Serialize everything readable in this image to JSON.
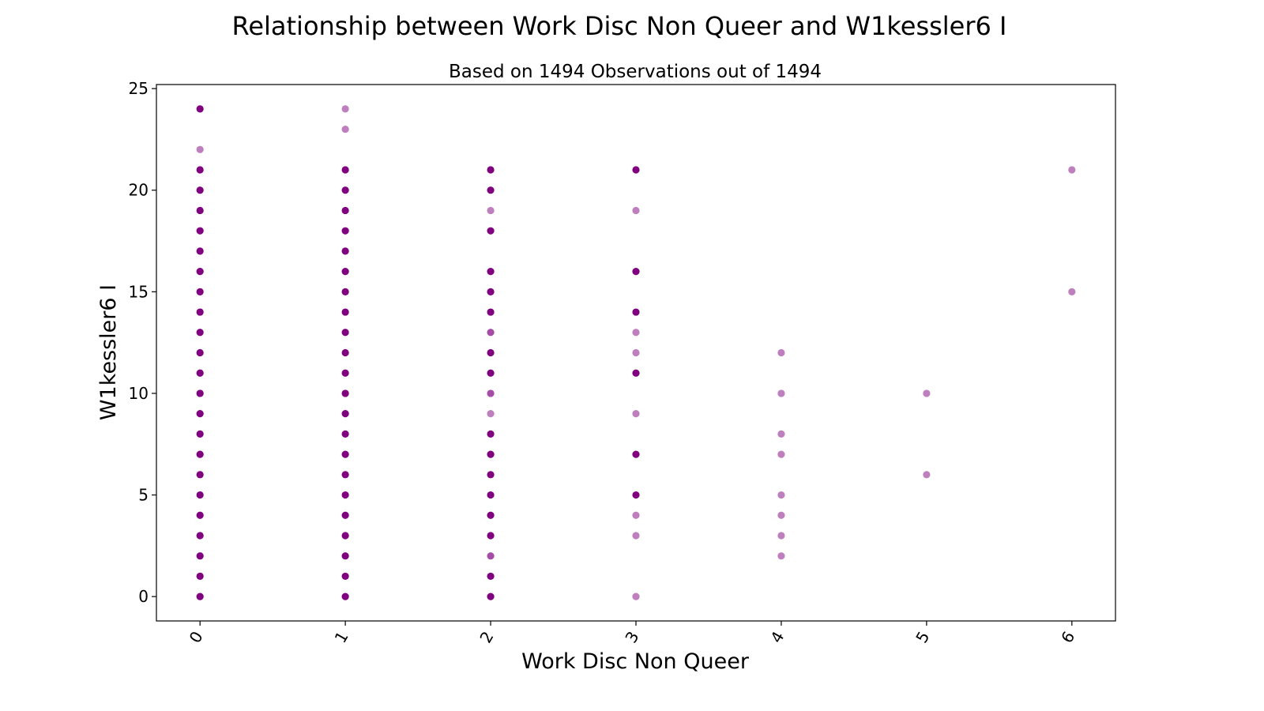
{
  "chart_data": {
    "type": "scatter",
    "title": "Relationship between Work Disc Non Queer and W1kessler6 I",
    "subtitle": "Based on 1494 Observations out of 1494",
    "xlabel": "Work Disc Non Queer",
    "ylabel": "W1kessler6 I",
    "xlim": [
      -0.3,
      6.3
    ],
    "ylim": [
      -1.2,
      25.2
    ],
    "xticks": [
      0,
      1,
      2,
      3,
      4,
      5,
      6
    ],
    "yticks": [
      0,
      5,
      10,
      15,
      20,
      25
    ],
    "xtick_rotation": -60,
    "grid": false,
    "legend": "none",
    "marker_color": "#800080",
    "points": [
      {
        "x": 0,
        "y": [
          0,
          1,
          2,
          3,
          4,
          5,
          6,
          7,
          8,
          9,
          10,
          11,
          12,
          13,
          14,
          15,
          16,
          17,
          18,
          19,
          20,
          21,
          22,
          24
        ]
      },
      {
        "x": 1,
        "y": [
          0,
          1,
          2,
          3,
          4,
          5,
          6,
          7,
          8,
          9,
          10,
          11,
          12,
          13,
          14,
          15,
          16,
          17,
          18,
          19,
          20,
          21,
          23,
          24
        ]
      },
      {
        "x": 2,
        "y": [
          0,
          1,
          2,
          3,
          4,
          5,
          6,
          7,
          8,
          9,
          10,
          11,
          12,
          13,
          14,
          15,
          16,
          18,
          19,
          20,
          21
        ]
      },
      {
        "x": 3,
        "y": [
          0,
          3,
          4,
          5,
          7,
          9,
          11,
          12,
          13,
          14,
          16,
          19,
          21
        ]
      },
      {
        "x": 4,
        "y": [
          2,
          3,
          4,
          5,
          7,
          8,
          10,
          12
        ]
      },
      {
        "x": 5,
        "y": [
          6,
          10
        ]
      },
      {
        "x": 6,
        "y": [
          15,
          21
        ]
      }
    ],
    "point_opacity": {
      "x0": {
        "22": 0.5
      },
      "x1": {
        "23": 0.5,
        "24": 0.5
      },
      "x2": {
        "9": 0.5,
        "19": 0.5,
        "13": 0.7,
        "10": 0.7,
        "2": 0.7
      },
      "x3": {
        "0": 0.5,
        "3": 0.5,
        "4": 0.5,
        "9": 0.5,
        "12": 0.5,
        "13": 0.5,
        "19": 0.5
      },
      "x4": {
        "all": 0.5
      },
      "x5": {
        "all": 0.5
      },
      "x6": {
        "all": 0.5
      }
    }
  }
}
